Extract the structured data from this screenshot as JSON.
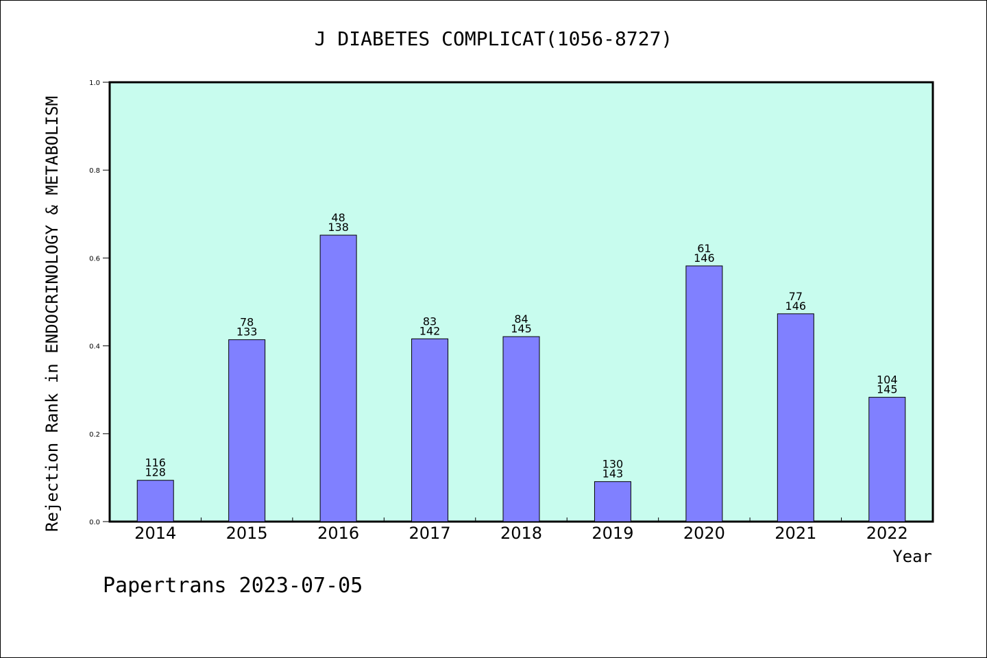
{
  "chart_data": {
    "type": "bar",
    "title": "J DIABETES COMPLICAT(1056-8727)",
    "xlabel": "Year",
    "ylabel": "Rejection Rank in ENDOCRINOLOGY & METABOLISM",
    "ylim": [
      0.0,
      1.0
    ],
    "yticks": [
      "0.0",
      "0.2",
      "0.4",
      "0.6",
      "0.8",
      "1.0"
    ],
    "ytick_values": [
      0.0,
      0.2,
      0.4,
      0.6,
      0.8,
      1.0
    ],
    "categories": [
      "2014",
      "2015",
      "2016",
      "2017",
      "2018",
      "2019",
      "2020",
      "2021",
      "2022"
    ],
    "values": [
      0.094,
      0.414,
      0.652,
      0.416,
      0.421,
      0.091,
      0.582,
      0.473,
      0.283
    ],
    "annotations": [
      {
        "rank": "116",
        "total": "128"
      },
      {
        "rank": "78",
        "total": "133"
      },
      {
        "rank": "48",
        "total": "138"
      },
      {
        "rank": "83",
        "total": "142"
      },
      {
        "rank": "84",
        "total": "145"
      },
      {
        "rank": "130",
        "total": "143"
      },
      {
        "rank": "61",
        "total": "146"
      },
      {
        "rank": "77",
        "total": "146"
      },
      {
        "rank": "104",
        "total": "145"
      }
    ],
    "grid": false,
    "bar_color": "#8080ff",
    "plot_background": "#c8fcee",
    "footer": "Papertrans 2023-07-05"
  }
}
